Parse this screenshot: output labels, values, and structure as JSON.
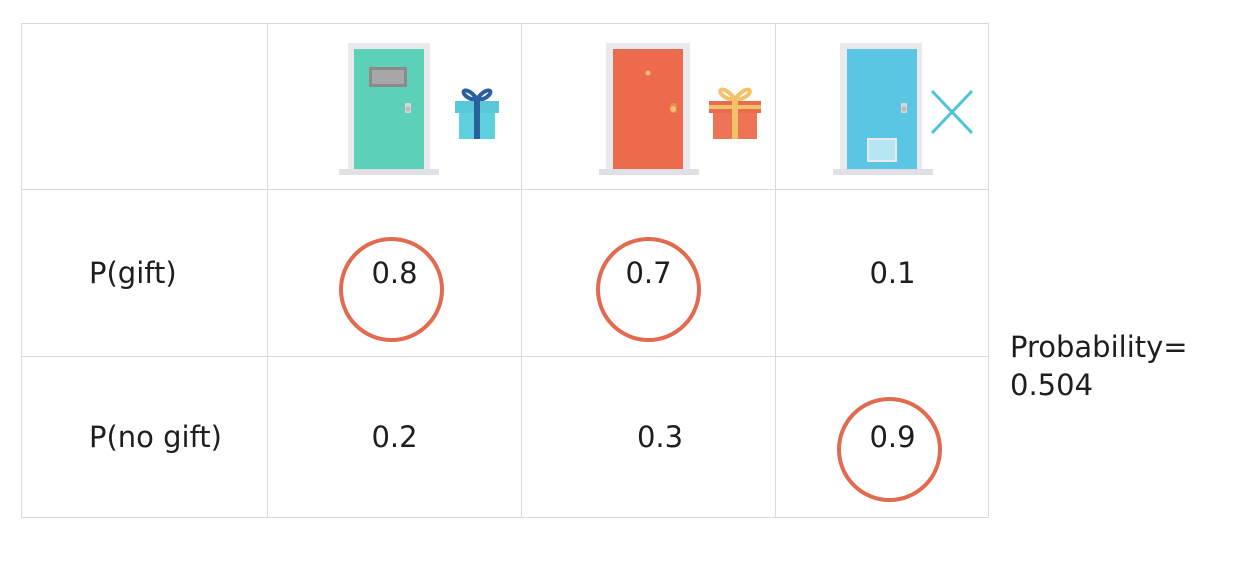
{
  "rows": [
    {
      "label": "P(gift)",
      "values": [
        "0.8",
        "0.7",
        "0.1"
      ],
      "circled": [
        true,
        true,
        false
      ]
    },
    {
      "label": "P(no gift)",
      "values": [
        "0.2",
        "0.3",
        "0.9"
      ],
      "circled": [
        false,
        false,
        true
      ]
    }
  ],
  "doors": [
    {
      "icon": "teal-door-icon",
      "color": "#5cd0b8",
      "outcome": "gift-icon",
      "outcome_color": "#58c8d6"
    },
    {
      "icon": "orange-door-icon",
      "color": "#ec6b4c",
      "outcome": "gift-icon",
      "outcome_color": "#ec6b4c"
    },
    {
      "icon": "blue-door-icon",
      "color": "#5bc6e4",
      "outcome": "cross-icon",
      "outcome_color": "#4fc3de"
    }
  ],
  "result": {
    "line1": "Probability=",
    "line2": "0.504"
  },
  "colors": {
    "circle": "#e16a50",
    "grid": "#dadada"
  }
}
